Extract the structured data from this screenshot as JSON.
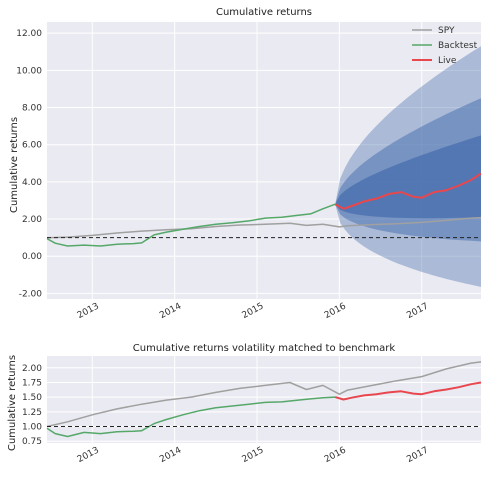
{
  "chart_data": [
    {
      "type": "line",
      "title": "Cumulative returns",
      "ylabel": "Cumulative returns",
      "xlabel": "",
      "xlim": [
        2012.45,
        2017.72
      ],
      "ylim": [
        -2.3,
        12.6
      ],
      "yticks": [
        -2.0,
        0.0,
        2.0,
        4.0,
        6.0,
        8.0,
        10.0,
        12.0
      ],
      "ytick_labels": [
        "-2.00",
        "0.00",
        "2.00",
        "4.00",
        "6.00",
        "8.00",
        "10.00",
        "12.00"
      ],
      "xticks": [
        2013,
        2014,
        2015,
        2016,
        2017
      ],
      "xtick_labels": [
        "2013",
        "2014",
        "2015",
        "2016",
        "2017"
      ],
      "grid": true,
      "legend_position": "top-right",
      "reference_line": 1.0,
      "series": [
        {
          "name": "SPY",
          "color": "#a0a0a0",
          "x": [
            2012.45,
            2012.7,
            2013.0,
            2013.3,
            2013.6,
            2013.9,
            2014.2,
            2014.5,
            2014.8,
            2015.1,
            2015.4,
            2015.6,
            2015.8,
            2016.0,
            2016.1,
            2016.4,
            2016.7,
            2017.0,
            2017.3,
            2017.6,
            2017.72
          ],
          "y": [
            1.0,
            1.03,
            1.12,
            1.25,
            1.35,
            1.42,
            1.48,
            1.6,
            1.68,
            1.72,
            1.78,
            1.66,
            1.72,
            1.58,
            1.64,
            1.7,
            1.75,
            1.82,
            1.93,
            2.05,
            2.08
          ]
        },
        {
          "name": "Backtest",
          "color": "#55a868",
          "x": [
            2012.45,
            2012.55,
            2012.7,
            2012.9,
            2013.1,
            2013.3,
            2013.5,
            2013.6,
            2013.75,
            2013.9,
            2014.1,
            2014.3,
            2014.5,
            2014.7,
            2014.9,
            2015.1,
            2015.3,
            2015.5,
            2015.65,
            2015.8,
            2015.95
          ],
          "y": [
            0.95,
            0.7,
            0.55,
            0.6,
            0.55,
            0.65,
            0.68,
            0.72,
            1.15,
            1.3,
            1.45,
            1.6,
            1.72,
            1.8,
            1.9,
            2.05,
            2.1,
            2.2,
            2.28,
            2.55,
            2.8
          ]
        },
        {
          "name": "Live",
          "color": "#e8474e",
          "x": [
            2015.95,
            2016.05,
            2016.15,
            2016.3,
            2016.45,
            2016.6,
            2016.75,
            2016.9,
            2017.0,
            2017.15,
            2017.3,
            2017.45,
            2017.6,
            2017.72
          ],
          "y": [
            2.8,
            2.55,
            2.7,
            2.95,
            3.1,
            3.35,
            3.45,
            3.2,
            3.15,
            3.45,
            3.55,
            3.8,
            4.1,
            4.45
          ]
        }
      ],
      "cone": {
        "start_x": 2015.95,
        "end_x": 2017.72,
        "base_start": 2.8,
        "base_end": 4.0,
        "upper_end": [
          6.5,
          8.5,
          11.3
        ],
        "lower_end": [
          2.1,
          0.8,
          -1.65
        ],
        "colors": [
          "#4c72b0",
          "#4c72b0",
          "#4c72b0"
        ],
        "opacities": [
          0.85,
          0.55,
          0.4
        ]
      }
    },
    {
      "type": "line",
      "title": "Cumulative returns volatility matched to benchmark",
      "ylabel": "Cumulative returns",
      "xlabel": "",
      "xlim": [
        2012.45,
        2017.72
      ],
      "ylim": [
        0.72,
        2.2
      ],
      "yticks": [
        0.75,
        1.0,
        1.25,
        1.5,
        1.75,
        2.0
      ],
      "ytick_labels": [
        "0.75",
        "1.00",
        "1.25",
        "1.50",
        "1.75",
        "2.00"
      ],
      "xticks": [
        2013,
        2014,
        2015,
        2016,
        2017
      ],
      "xtick_labels": [
        "2013",
        "2014",
        "2015",
        "2016",
        "2017"
      ],
      "grid": true,
      "reference_line": 1.0,
      "series": [
        {
          "name": "SPY",
          "color": "#a0a0a0",
          "x": [
            2012.45,
            2012.7,
            2013.0,
            2013.3,
            2013.6,
            2013.9,
            2014.2,
            2014.5,
            2014.8,
            2015.1,
            2015.4,
            2015.6,
            2015.8,
            2016.0,
            2016.1,
            2016.4,
            2016.7,
            2017.0,
            2017.3,
            2017.6,
            2017.72
          ],
          "y": [
            1.0,
            1.08,
            1.2,
            1.3,
            1.38,
            1.45,
            1.5,
            1.58,
            1.65,
            1.7,
            1.75,
            1.63,
            1.7,
            1.55,
            1.62,
            1.7,
            1.78,
            1.85,
            1.98,
            2.08,
            2.1
          ]
        },
        {
          "name": "Backtest",
          "color": "#55a868",
          "x": [
            2012.45,
            2012.55,
            2012.7,
            2012.9,
            2013.1,
            2013.3,
            2013.5,
            2013.6,
            2013.75,
            2013.9,
            2014.1,
            2014.3,
            2014.5,
            2014.7,
            2014.9,
            2015.1,
            2015.3,
            2015.5,
            2015.65,
            2015.8,
            2015.95
          ],
          "y": [
            0.97,
            0.88,
            0.83,
            0.9,
            0.88,
            0.91,
            0.92,
            0.93,
            1.05,
            1.12,
            1.2,
            1.27,
            1.32,
            1.35,
            1.38,
            1.41,
            1.42,
            1.45,
            1.47,
            1.49,
            1.5
          ]
        },
        {
          "name": "Live",
          "color": "#e8474e",
          "x": [
            2015.95,
            2016.05,
            2016.15,
            2016.3,
            2016.45,
            2016.6,
            2016.75,
            2016.9,
            2017.0,
            2017.15,
            2017.3,
            2017.45,
            2017.6,
            2017.72
          ],
          "y": [
            1.5,
            1.46,
            1.49,
            1.53,
            1.55,
            1.58,
            1.6,
            1.56,
            1.55,
            1.6,
            1.63,
            1.67,
            1.72,
            1.75
          ]
        }
      ]
    }
  ]
}
